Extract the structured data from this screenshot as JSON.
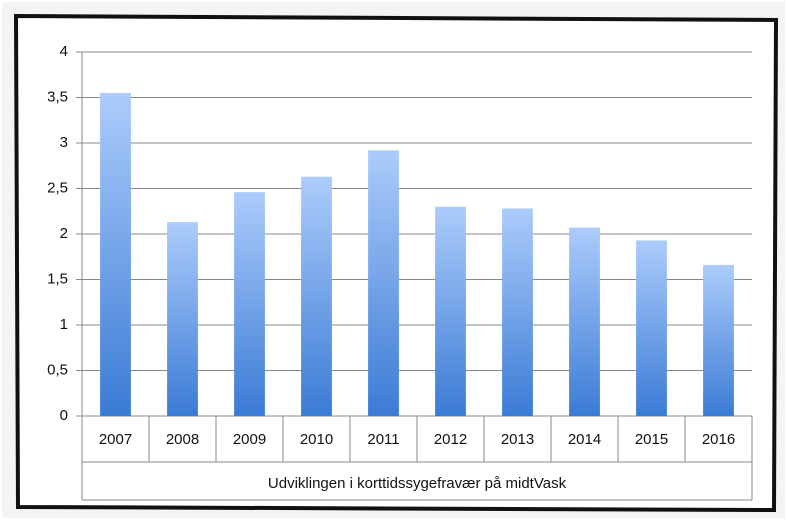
{
  "chart_data": {
    "type": "bar",
    "xlabel": "Udviklingen i korttidssygefravær på midtVask",
    "categories": [
      "2007",
      "2008",
      "2009",
      "2010",
      "2011",
      "2012",
      "2013",
      "2014",
      "2015",
      "2016"
    ],
    "values": [
      3.55,
      2.13,
      2.46,
      2.63,
      2.92,
      2.3,
      2.28,
      2.07,
      1.93,
      1.66
    ],
    "gradient": [
      "#acccfb",
      "#3b7bd5"
    ],
    "ylim": [
      0,
      4
    ],
    "yticks": [
      0,
      {
        "value": 0.5,
        "label": "0,5"
      },
      1,
      {
        "value": 1.5,
        "label": "1,5"
      },
      2,
      {
        "value": 2.5,
        "label": "2,5"
      },
      3,
      {
        "value": 3.5,
        "label": "3,5"
      },
      4
    ],
    "grid": true
  }
}
